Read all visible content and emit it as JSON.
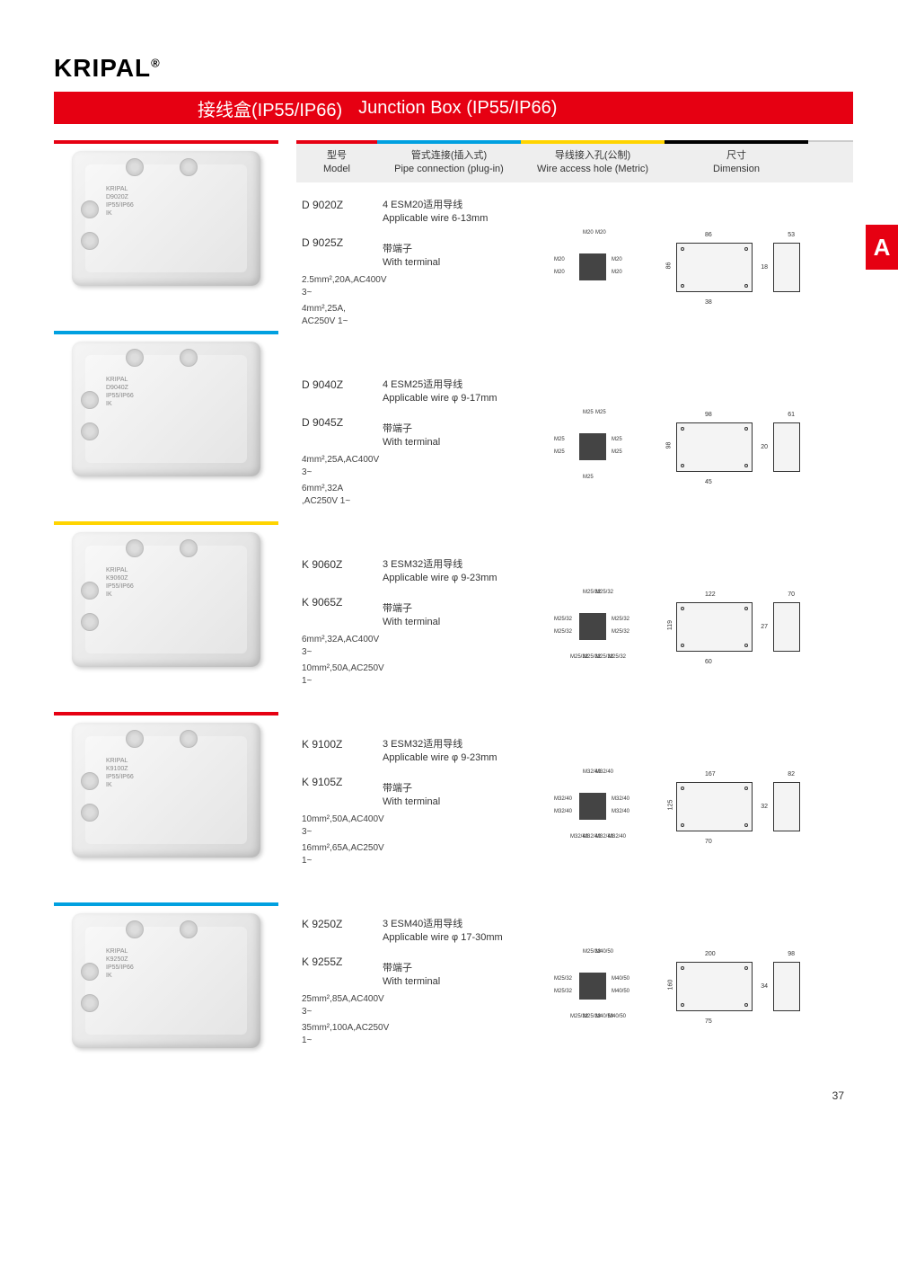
{
  "brand": "KRIPAL",
  "brand_mark": "®",
  "title_zh": "接线盒(IP55/IP66)",
  "title_en": "Junction Box (IP55/IP66)",
  "section_letter": "A",
  "page_number": "37",
  "headers": {
    "model_zh": "型号",
    "model_en": "Model",
    "pipe_zh": "管式连接(插入式)",
    "pipe_en": "Pipe connection (plug-in)",
    "wire_zh": "导线接入孔(公制)",
    "wire_en": "Wire access hole (Metric)",
    "dim_zh": "尺寸",
    "dim_en": "Dimension"
  },
  "header_colors": {
    "model": "#e60012",
    "pipe": "#00a0e0",
    "wire": "#ffd400",
    "dim": "#000000"
  },
  "thumb_label": {
    "brand": "KRIPAL",
    "line2": "D9020Z",
    "line3": "IP55/IP66",
    "line4": "IK"
  },
  "products": [
    {
      "bar_color": "#e60012",
      "model_a": "D 9020Z",
      "model_b": "D 9025Z",
      "pipe_a_zh": "4 ESM20适用导线",
      "pipe_a_en": "Applicable wire 6-13mm",
      "pipe_b_zh": "带端子",
      "pipe_b_en": "With terminal",
      "spec1": "2.5mm²,20A,AC400V 3~",
      "spec2": "4mm²,25A, AC250V 1~",
      "wire_labels": [
        "M20",
        "M20",
        "M20",
        "M20",
        "M20",
        "M20"
      ],
      "dims": {
        "w": "86",
        "h": "86",
        "d": "53",
        "inner_w": "38",
        "inner_h": "18"
      }
    },
    {
      "bar_color": "#00a0e0",
      "model_a": "D 9040Z",
      "model_b": "D 9045Z",
      "pipe_a_zh": "4 ESM25适用导线",
      "pipe_a_en": "Applicable wire φ 9-17mm",
      "pipe_b_zh": "带端子",
      "pipe_b_en": "With terminal",
      "spec1": "4mm²,25A,AC400V 3~",
      "spec2": "6mm²,32A ,AC250V 1~",
      "wire_labels": [
        "M25",
        "M25",
        "M25",
        "M25",
        "M25",
        "M25",
        "M25"
      ],
      "dims": {
        "w": "98",
        "h": "98",
        "d": "61",
        "inner_w": "45",
        "inner_h": "20"
      }
    },
    {
      "bar_color": "#ffd400",
      "model_a": "K 9060Z",
      "model_b": "K 9065Z",
      "pipe_a_zh": "3 ESM32适用导线",
      "pipe_a_en": "Applicable wire φ 9-23mm",
      "pipe_b_zh": "带端子",
      "pipe_b_en": "With terminal",
      "spec1": "6mm²,32A,AC400V 3~",
      "spec2": "10mm²,50A,AC250V 1~",
      "wire_labels": [
        "M25/32",
        "M25/32",
        "M25/32",
        "M25/32",
        "M25/32",
        "M25/32",
        "M25/32",
        "M25/32",
        "M25/32",
        "M25/32"
      ],
      "dims": {
        "w": "122",
        "h": "119",
        "d": "70",
        "inner_w": "60",
        "inner_h": "27"
      }
    },
    {
      "bar_color": "#e60012",
      "model_a": "K 9100Z",
      "model_b": "K 9105Z",
      "pipe_a_zh": "3 ESM32适用导线",
      "pipe_a_en": "Applicable wire φ 9-23mm",
      "pipe_b_zh": "带端子",
      "pipe_b_en": "With terminal",
      "spec1": "10mm²,50A,AC400V 3~",
      "spec2": "16mm²,65A,AC250V 1~",
      "wire_labels": [
        "M32/40",
        "M32/40",
        "M32/40",
        "M32/40",
        "M32/40",
        "M32/40",
        "M32/40",
        "M32/40",
        "M32/40",
        "M32/40"
      ],
      "dims": {
        "w": "167",
        "h": "125",
        "d": "82",
        "inner_w": "70",
        "inner_h": "32"
      }
    },
    {
      "bar_color": "#00a0e0",
      "model_a": "K 9250Z",
      "model_b": "K 9255Z",
      "pipe_a_zh": "3 ESM40适用导线",
      "pipe_a_en": "Applicable wire φ 17-30mm",
      "pipe_b_zh": "带端子",
      "pipe_b_en": "With terminal",
      "spec1": "25mm²,85A,AC400V 3~",
      "spec2": "35mm²,100A,AC250V 1~",
      "wire_labels": [
        "M25/32",
        "M40/50",
        "M25/32",
        "M40/50",
        "M25/32",
        "M40/50",
        "M25/32",
        "M40/50",
        "M25/32",
        "M40/50"
      ],
      "dims": {
        "w": "200",
        "h": "160",
        "d": "98",
        "inner_w": "75",
        "inner_h": "34"
      }
    }
  ]
}
